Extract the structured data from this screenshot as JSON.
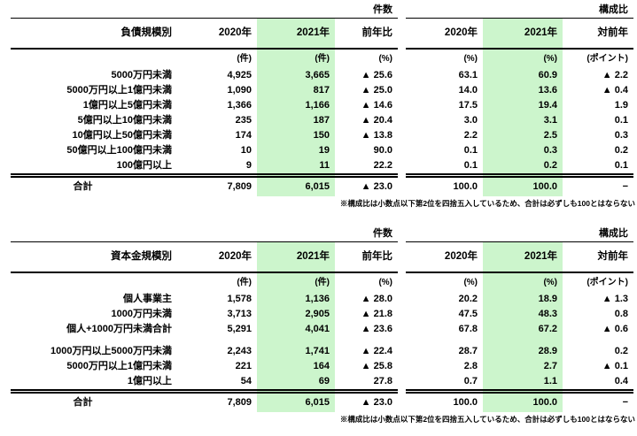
{
  "colors": {
    "highlight": "#ccf5cc",
    "rule": "#000000"
  },
  "footnote": "※構成比は小数点以下第2位を四捨五入しているため、合計は必ずしも100とはならない",
  "tables": [
    {
      "name": "debt-size",
      "row_axis_label": "負債規模別",
      "group_headers": [
        "件数",
        "構成比"
      ],
      "column_headers": [
        "2020年",
        "2021年",
        "前年比",
        "2020年",
        "2021年",
        "対前年"
      ],
      "unit_labels": [
        "(件)",
        "(件)",
        "(%)",
        "(%)",
        "(%)",
        "(ポイント)"
      ],
      "rows": [
        {
          "label": "5000万円未満",
          "values": [
            "4,925",
            "3,665",
            "▲ 25.6",
            "63.1",
            "60.9",
            "▲ 2.2"
          ]
        },
        {
          "label": "5000万円以上1億円未満",
          "values": [
            "1,090",
            "817",
            "▲ 25.0",
            "14.0",
            "13.6",
            "▲ 0.4"
          ]
        },
        {
          "label": "1億円以上5億円未満",
          "values": [
            "1,366",
            "1,166",
            "▲ 14.6",
            "17.5",
            "19.4",
            "1.9"
          ]
        },
        {
          "label": "5億円以上10億円未満",
          "values": [
            "235",
            "187",
            "▲ 20.4",
            "3.0",
            "3.1",
            "0.1"
          ]
        },
        {
          "label": "10億円以上50億円未満",
          "values": [
            "174",
            "150",
            "▲ 13.8",
            "2.2",
            "2.5",
            "0.3"
          ]
        },
        {
          "label": "50億円以上100億円未満",
          "values": [
            "10",
            "19",
            "90.0",
            "0.1",
            "0.3",
            "0.2"
          ]
        },
        {
          "label": "100億円以上",
          "values": [
            "9",
            "11",
            "22.2",
            "0.1",
            "0.2",
            "0.1"
          ]
        }
      ],
      "total_row": {
        "label": "合計",
        "values": [
          "7,809",
          "6,015",
          "▲ 23.0",
          "100.0",
          "100.0",
          "−"
        ]
      }
    },
    {
      "name": "capital-size",
      "row_axis_label": "資本金規模別",
      "group_headers": [
        "件数",
        "構成比"
      ],
      "column_headers": [
        "2020年",
        "2021年",
        "前年比",
        "2020年",
        "2021年",
        "対前年"
      ],
      "unit_labels": [
        "(件)",
        "(件)",
        "(%)",
        "(%)",
        "(%)",
        "(ポイント)"
      ],
      "rows": [
        {
          "label": "個人事業主",
          "values": [
            "1,578",
            "1,136",
            "▲ 28.0",
            "20.2",
            "18.9",
            "▲ 1.3"
          ]
        },
        {
          "label": "1000万円未満",
          "values": [
            "3,713",
            "2,905",
            "▲ 21.8",
            "47.5",
            "48.3",
            "0.8"
          ]
        },
        {
          "label": "個人+1000万円未満合計",
          "indent": true,
          "values": [
            "5,291",
            "4,041",
            "▲ 23.6",
            "67.8",
            "67.2",
            "▲ 0.6"
          ]
        },
        {
          "label": "1000万円以上5000万円未満",
          "spacer_before": true,
          "values": [
            "2,243",
            "1,741",
            "▲ 22.4",
            "28.7",
            "28.9",
            "0.2"
          ]
        },
        {
          "label": "5000万円以上1億円未満",
          "values": [
            "221",
            "164",
            "▲ 25.8",
            "2.8",
            "2.7",
            "▲ 0.1"
          ]
        },
        {
          "label": "1億円以上",
          "values": [
            "54",
            "69",
            "27.8",
            "0.7",
            "1.1",
            "0.4"
          ]
        }
      ],
      "total_row": {
        "label": "合計",
        "values": [
          "7,809",
          "6,015",
          "▲ 23.0",
          "100.0",
          "100.0",
          "−"
        ]
      }
    }
  ]
}
